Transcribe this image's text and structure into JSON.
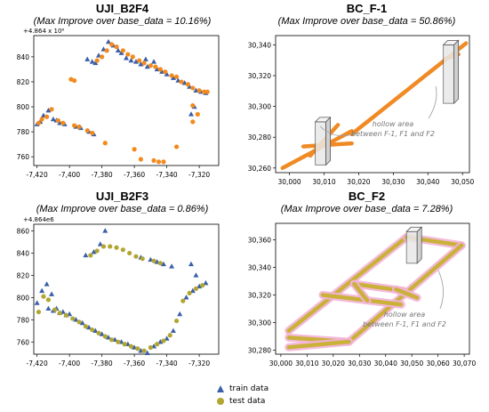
{
  "colors": {
    "train": "#3b5fa8",
    "test": "#f28a1e",
    "test_olive": "#b2a632",
    "path_yellow": "#c9b13a",
    "path_orange": "#f08a24",
    "pink": "#f3b3d7"
  },
  "legend": {
    "train_label": "train data",
    "test_label": "test data"
  },
  "chart_data": [
    {
      "type": "scatter",
      "title": "UJI_B2F4",
      "subtitle": "(Max Improve over base_data = 10.16%)",
      "offset_label": "+4.864 x 10⁶",
      "xlim": [
        -7422,
        -7308
      ],
      "ylim": [
        753,
        857
      ],
      "xticks": [
        -7420,
        -7400,
        -7380,
        -7360,
        -7340,
        -7320
      ],
      "xtick_labels": [
        "-7,420",
        "-7,400",
        "-7,380",
        "-7,360",
        "-7,340",
        "-7,320"
      ],
      "yticks": [
        760,
        780,
        800,
        820,
        840
      ],
      "series": [
        {
          "role": "train",
          "x": [
            -7420,
            -7418,
            -7416,
            -7413,
            -7410,
            -7408,
            -7406,
            -7403,
            -7396,
            -7393,
            -7388,
            -7385,
            -7384,
            -7379,
            -7376,
            -7373,
            -7370,
            -7368,
            -7365,
            -7362,
            -7359,
            -7356,
            -7352,
            -7346,
            -7343,
            -7340,
            -7336,
            -7333,
            -7329,
            -7326,
            -7322,
            -7319,
            -7316,
            -7323,
            -7325,
            -7389,
            -7386,
            -7382,
            -7353,
            -7348
          ],
          "y": [
            786,
            788,
            793,
            797,
            790,
            789,
            787,
            786,
            784,
            783,
            780,
            778,
            835,
            846,
            852,
            849,
            845,
            843,
            839,
            837,
            836,
            834,
            832,
            830,
            828,
            826,
            823,
            821,
            819,
            816,
            813,
            812,
            811,
            800,
            794,
            838,
            836,
            841,
            838,
            836
          ]
        },
        {
          "role": "test",
          "x": [
            -7419,
            -7417,
            -7414,
            -7411,
            -7407,
            -7404,
            -7397,
            -7394,
            -7389,
            -7386,
            -7383,
            -7380,
            -7377,
            -7374,
            -7371,
            -7367,
            -7364,
            -7361,
            -7357,
            -7354,
            -7350,
            -7347,
            -7344,
            -7341,
            -7337,
            -7334,
            -7331,
            -7327,
            -7324,
            -7320,
            -7317,
            -7315,
            -7399,
            -7397,
            -7378,
            -7360,
            -7356,
            -7348,
            -7345,
            -7342,
            -7334,
            -7324,
            -7321,
            -7324
          ],
          "y": [
            787,
            790,
            792,
            798,
            789,
            787,
            785,
            784,
            781,
            779,
            837,
            840,
            845,
            850,
            848,
            845,
            842,
            840,
            837,
            835,
            833,
            832,
            830,
            828,
            825,
            824,
            820,
            818,
            815,
            813,
            812,
            812,
            822,
            821,
            771,
            766,
            758,
            757,
            756,
            756,
            768,
            801,
            794,
            788
          ]
        }
      ]
    },
    {
      "type": "line",
      "title": "BC_F-1",
      "subtitle": "(Max Improve over base_data = 50.86%)",
      "xlim": [
        29996,
        30052
      ],
      "ylim": [
        30257,
        30346
      ],
      "xticks": [
        30000,
        30010,
        30020,
        30030,
        30040,
        30050
      ],
      "xtick_labels": [
        "30,000",
        "30,010",
        "30,020",
        "30,030",
        "30,040",
        "30,050"
      ],
      "yticks": [
        30260,
        30280,
        30300,
        30320,
        30340
      ],
      "yticks_labels": [
        "30,260",
        "30,280",
        "30,300",
        "30,320",
        "30,340"
      ],
      "annotation": "hollow area\nbetween F-1, F1 and F2",
      "segments": [
        {
          "x": [
            29998,
            30018
          ],
          "y": [
            30260,
            30284
          ]
        },
        {
          "x": [
            30018,
            30051
          ],
          "y": [
            30282,
            30341
          ]
        },
        {
          "x": [
            30004,
            30018
          ],
          "y": [
            30274,
            30276
          ]
        },
        {
          "x": [
            30006,
            30014
          ],
          "y": [
            30268,
            30288
          ]
        },
        {
          "x": [
            30045,
            30049
          ],
          "y": [
            30331,
            30334
          ]
        }
      ],
      "boxes": [
        {
          "x": 30009,
          "y0": 30262,
          "y1": 30290
        },
        {
          "x": 30046,
          "y0": 30302,
          "y1": 30340
        }
      ]
    },
    {
      "type": "scatter",
      "title": "UJI_B2F3",
      "subtitle": "(Max Improve over base_data = 0.86%)",
      "offset_label": "+4.864e6",
      "xlim": [
        -7422,
        -7308
      ],
      "ylim": [
        749,
        866
      ],
      "xticks": [
        -7420,
        -7400,
        -7380,
        -7360,
        -7340,
        -7320
      ],
      "xtick_labels": [
        "-7,420",
        "-7,400",
        "-7,380",
        "-7,360",
        "-7,340",
        "-7,320"
      ],
      "yticks": [
        760,
        780,
        800,
        820,
        840,
        860
      ],
      "series": [
        {
          "role": "train",
          "x": [
            -7420,
            -7417,
            -7414,
            -7411,
            -7408,
            -7404,
            -7400,
            -7396,
            -7392,
            -7388,
            -7384,
            -7380,
            -7376,
            -7372,
            -7368,
            -7364,
            -7360,
            -7356,
            -7352,
            -7348,
            -7344,
            -7340,
            -7336,
            -7332,
            -7328,
            -7324,
            -7320,
            -7316,
            -7322,
            -7325,
            -7390,
            -7385,
            -7381,
            -7378,
            -7356,
            -7350,
            -7346,
            -7342,
            -7337,
            -7413,
            -7410,
            -7406,
            -7402
          ],
          "y": [
            795,
            806,
            812,
            803,
            790,
            787,
            785,
            780,
            777,
            773,
            770,
            767,
            764,
            762,
            760,
            758,
            755,
            752,
            750,
            756,
            760,
            763,
            770,
            785,
            800,
            806,
            810,
            813,
            820,
            830,
            838,
            841,
            848,
            860,
            836,
            834,
            832,
            830,
            828,
            790,
            788,
            786,
            784
          ]
        },
        {
          "role": "test",
          "x": [
            -7419,
            -7416,
            -7413,
            -7409,
            -7406,
            -7402,
            -7398,
            -7394,
            -7390,
            -7386,
            -7382,
            -7378,
            -7374,
            -7370,
            -7366,
            -7362,
            -7358,
            -7354,
            -7350,
            -7346,
            -7342,
            -7338,
            -7334,
            -7330,
            -7326,
            -7322,
            -7318,
            -7387,
            -7383,
            -7379,
            -7375,
            -7371,
            -7367,
            -7363,
            -7359,
            -7355,
            -7348,
            -7344
          ],
          "y": [
            787,
            801,
            798,
            789,
            786,
            784,
            781,
            778,
            774,
            771,
            768,
            765,
            762,
            760,
            758,
            756,
            754,
            752,
            755,
            758,
            761,
            766,
            779,
            797,
            804,
            808,
            811,
            838,
            842,
            846,
            846,
            845,
            843,
            840,
            837,
            835,
            833,
            831
          ]
        }
      ]
    },
    {
      "type": "line",
      "title": "BC_F2",
      "subtitle": "(Max Improve over base_data = 7.28%)",
      "xlim": [
        29998,
        30072
      ],
      "ylim": [
        30277,
        30372
      ],
      "xticks": [
        30000,
        30010,
        30020,
        30030,
        30040,
        30050,
        30060,
        30070
      ],
      "xtick_labels": [
        "30,000",
        "30,010",
        "30,020",
        "30,030",
        "30,040",
        "30,050",
        "30,060",
        "30,070"
      ],
      "yticks": [
        30280,
        30300,
        30320,
        30340,
        30360
      ],
      "yticks_labels": [
        "30,280",
        "30,300",
        "30,320",
        "30,340",
        "30,360"
      ],
      "annotation": "hollow area\nbetween  F-1, F1 and F2",
      "segments": [
        {
          "x": [
            30003,
            30048
          ],
          "y": [
            30294,
            30362
          ]
        },
        {
          "x": [
            30048,
            30069
          ],
          "y": [
            30362,
            30356
          ]
        },
        {
          "x": [
            30069,
            30026
          ],
          "y": [
            30356,
            30286
          ]
        },
        {
          "x": [
            30026,
            30003
          ],
          "y": [
            30286,
            30289
          ]
        },
        {
          "x": [
            30003,
            30026
          ],
          "y": [
            30282,
            30286
          ]
        },
        {
          "x": [
            30016,
            30046
          ],
          "y": [
            30320,
            30313
          ]
        },
        {
          "x": [
            30028,
            30047
          ],
          "y": [
            30328,
            30323
          ]
        },
        {
          "x": [
            30028,
            30033
          ],
          "y": [
            30328,
            30316
          ]
        },
        {
          "x": [
            30044,
            30052
          ],
          "y": [
            30324,
            30318
          ]
        }
      ],
      "boxes": [
        {
          "x": 30050,
          "y0": 30343,
          "y1": 30366
        }
      ]
    }
  ]
}
